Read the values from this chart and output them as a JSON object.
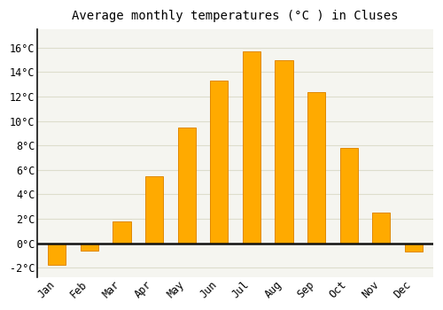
{
  "title": "Average monthly temperatures (°C ) in Cluses",
  "months": [
    "Jan",
    "Feb",
    "Mar",
    "Apr",
    "May",
    "Jun",
    "Jul",
    "Aug",
    "Sep",
    "Oct",
    "Nov",
    "Dec"
  ],
  "values": [
    -1.8,
    -0.6,
    1.8,
    5.5,
    9.5,
    13.3,
    15.7,
    15.0,
    12.4,
    7.8,
    2.5,
    -0.7
  ],
  "bar_color": "#FFAA00",
  "bar_edge_color": "#E08800",
  "ylim": [
    -2.8,
    17.5
  ],
  "yticks": [
    -2,
    0,
    2,
    4,
    6,
    8,
    10,
    12,
    14,
    16
  ],
  "background_color": "#FFFFFF",
  "plot_bg_color": "#F5F5F0",
  "grid_color": "#DDDDCC",
  "zero_line_color": "#111111",
  "left_spine_color": "#111111",
  "title_fontsize": 10,
  "tick_fontsize": 8.5,
  "font_family": "monospace",
  "bar_width": 0.55
}
